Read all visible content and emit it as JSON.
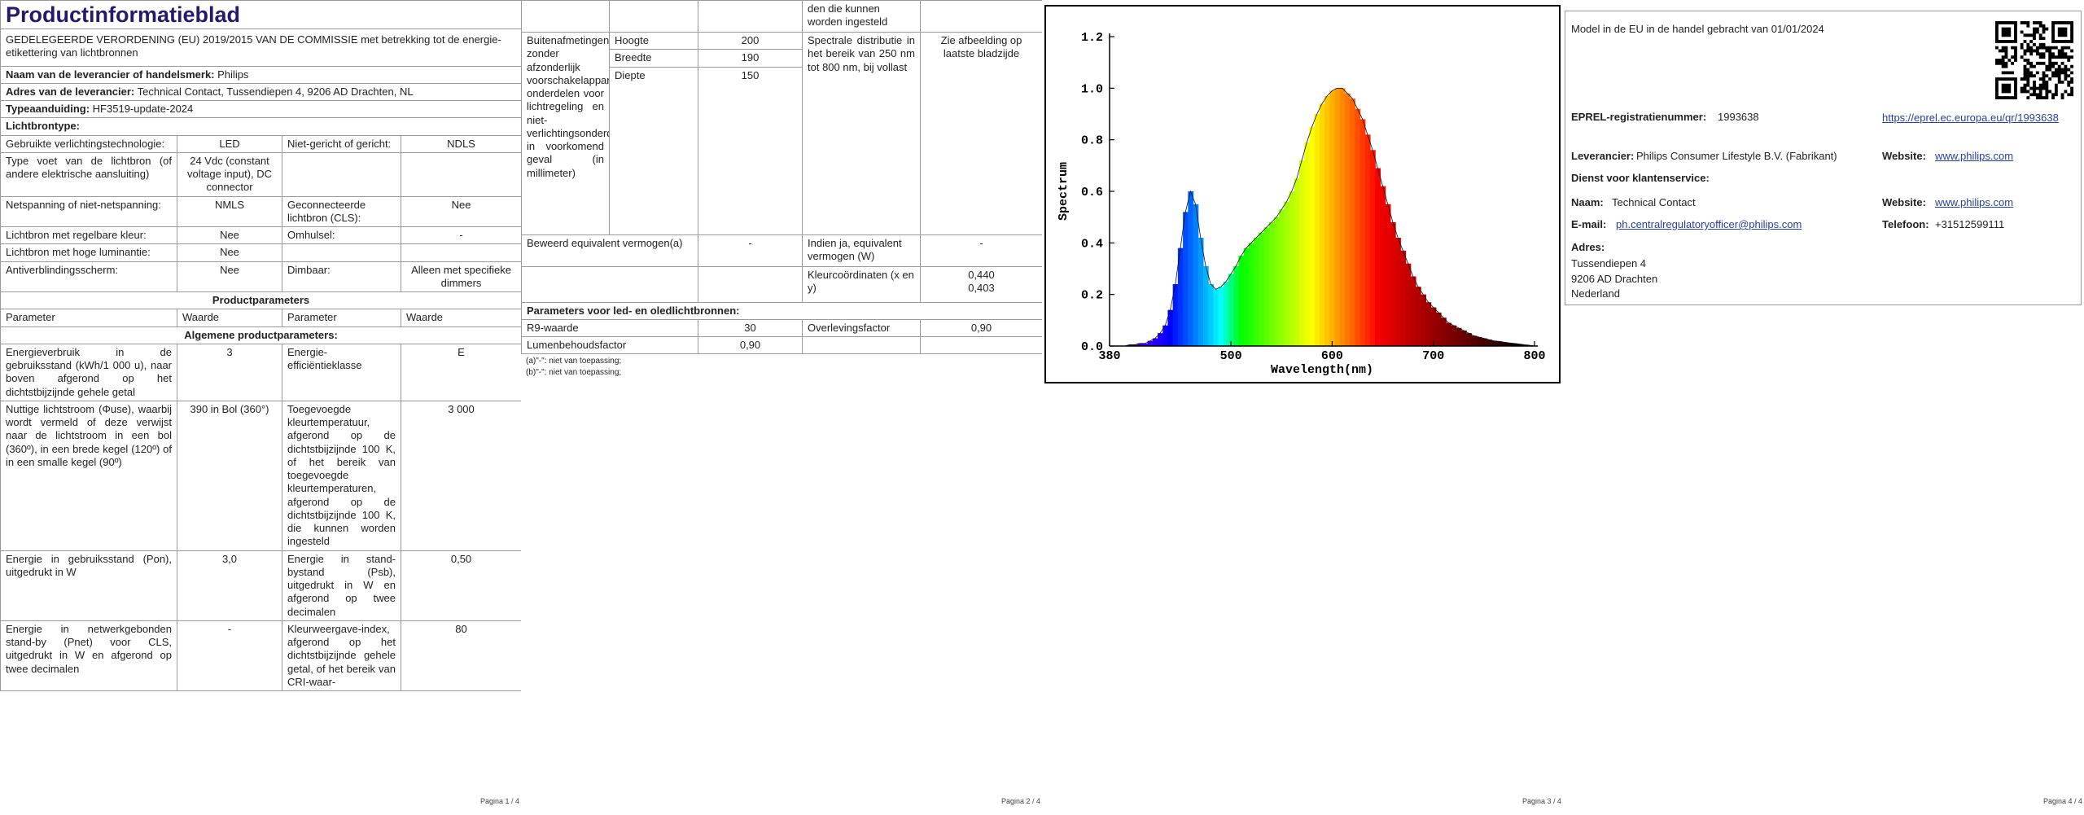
{
  "page1": {
    "title": "Productinformatieblad",
    "subtitle": "GEDELEGEERDE VERORDENING (EU) 2019/2015 VAN DE COMMISSIE met betrekking tot de energie-etikettering van lichtbronnen",
    "supplier": [
      [
        "Naam van de leverancier of handelsmerk:",
        "Philips"
      ],
      [
        "Adres van de leverancier:",
        "Technical Contact, Tussendiepen 4, 9206 AD Drachten, NL"
      ],
      [
        "Typeaanduiding:",
        "HF3519-update-2024"
      ]
    ],
    "lightsource_heading": "Lichtbrontype:",
    "lightsource_rows": [
      [
        "Gebruikte verlichtingstechnologie:",
        "LED",
        "Niet-gericht of gericht:",
        "NDLS"
      ],
      [
        "Type voet van de lichtbron (of andere elektrische aansluiting)",
        "24 Vdc (constant voltage input), DC connector",
        null,
        null
      ],
      [
        "Netspanning of niet-netspanning:",
        "NMLS",
        "Geconnecteerde lichtbron (CLS):",
        "Nee"
      ],
      [
        "Lichtbron met regelbare kleur:",
        "Nee",
        "Omhulsel:",
        "-"
      ],
      [
        "Lichtbron met hoge luminantie:",
        "Nee",
        null,
        null
      ],
      [
        "Antiverblindingsscherm:",
        "Nee",
        "Dimbaar:",
        "Alleen met specifieke dimmers"
      ]
    ],
    "params_heading": "Productparameters",
    "params_columns": [
      "Parameter",
      "Waarde",
      "Parameter",
      "Waarde"
    ],
    "general_heading": "Algemene productparameters:",
    "general_rows": [
      [
        "Energieverbruik in de gebruiksstand (kWh/1 000 u), naar boven afgerond op het dichtstbijzijnde gehele getal",
        "3",
        "Energie-efficiëntieklasse",
        "E"
      ],
      [
        "Nuttige lichtstroom (Φuse), waarbij wordt vermeld of deze verwijst naar de lichtstroom in een bol (360º), in een brede kegel (120º) of in een smalle kegel (90º)",
        "390 in Bol (360°)",
        "Toegevoegde kleurtemperatuur, afgerond op de dichtstbijzijnde 100 K, of het bereik van toegevoegde kleurtemperaturen, afgerond op de dichtstbijzijnde 100 K, die kunnen worden ingesteld",
        "3 000"
      ],
      [
        "Energie in gebruiksstand (Pon), uitgedrukt in W",
        "3,0",
        "Energie in stand-bystand (Psb), uitgedrukt in W en afgerond op twee decimalen",
        "0,50"
      ],
      [
        "Energie in netwerkgebonden stand-by (Pnet) voor CLS, uitgedrukt in W en afgerond op twee decimalen",
        "-",
        "Kleurweergave-index, afgerond op het dichtstbijzijnde gehele getal, of het bereik van CRI-waar-",
        "80"
      ]
    ],
    "footer": "Pagina 1 / 4"
  },
  "page2": {
    "continued": "den die kunnen worden ingesteld",
    "dimensions_label": "Buitenafmetingen zonder afzonderlijk voorschakelapparaat, onderdelen voor lichtregeling en niet-verlichtingsonderdelen, in voorkomend geval (in millimeter)",
    "dimensions": [
      [
        "Hoogte",
        "200"
      ],
      [
        "Breedte",
        "190"
      ],
      [
        "Diepte",
        "150"
      ]
    ],
    "spectral_label": "Spectrale distributie in het bereik van 250 nm tot 800 nm, bij vollast",
    "spectral_value": "Zie afbeelding op laatste bladzijde",
    "equivalent_label": "Beweerd equivalent vermogen(a)",
    "equivalent_value": "-",
    "equivalent_w_label": "Indien ja, equivalent vermogen (W)",
    "equivalent_w_value": "-",
    "chromaticity_label": "Kleurcoördinaten (x en y)",
    "chromaticity_values": [
      "0,440",
      "0,403"
    ],
    "led_heading": "Parameters voor led- en oledlichtbronnen:",
    "r9_label": "R9-waarde",
    "r9_value": "30",
    "survival_label": "Overlevingsfactor",
    "survival_value": "0,90",
    "lumen_label": "Lumenbehoudsfactor",
    "lumen_value": "0,90",
    "footnotes": [
      "(a)\"-\": niet van toepassing;",
      "(b)\"-\": niet van toepassing;"
    ],
    "footer": "Pagina 2 / 4"
  },
  "chart_data": {
    "type": "area",
    "xlabel": "Wavelength(nm)",
    "ylabel": "Spectrum",
    "x": [
      380,
      385,
      390,
      395,
      400,
      405,
      410,
      415,
      420,
      425,
      430,
      435,
      440,
      445,
      450,
      455,
      460,
      465,
      470,
      475,
      480,
      485,
      490,
      495,
      500,
      505,
      510,
      515,
      520,
      525,
      530,
      535,
      540,
      545,
      550,
      555,
      560,
      565,
      570,
      575,
      580,
      585,
      590,
      595,
      600,
      605,
      610,
      615,
      620,
      625,
      630,
      635,
      640,
      645,
      650,
      655,
      660,
      665,
      670,
      675,
      680,
      685,
      690,
      695,
      700,
      705,
      710,
      715,
      720,
      725,
      730,
      735,
      740,
      745,
      750,
      755,
      760,
      765,
      770,
      775,
      780,
      785,
      790,
      795,
      800
    ],
    "values": [
      0,
      0,
      0,
      0,
      0.005,
      0.005,
      0.01,
      0.01,
      0.02,
      0.03,
      0.05,
      0.08,
      0.14,
      0.24,
      0.38,
      0.52,
      0.6,
      0.55,
      0.42,
      0.31,
      0.24,
      0.22,
      0.23,
      0.25,
      0.28,
      0.31,
      0.35,
      0.38,
      0.4,
      0.42,
      0.44,
      0.46,
      0.48,
      0.5,
      0.53,
      0.56,
      0.6,
      0.65,
      0.72,
      0.79,
      0.85,
      0.9,
      0.94,
      0.97,
      0.99,
      1,
      1,
      0.98,
      0.96,
      0.92,
      0.88,
      0.82,
      0.76,
      0.69,
      0.62,
      0.55,
      0.48,
      0.42,
      0.37,
      0.32,
      0.27,
      0.23,
      0.2,
      0.17,
      0.15,
      0.13,
      0.11,
      0.09,
      0.08,
      0.07,
      0.06,
      0.05,
      0.04,
      0.035,
      0.03,
      0.025,
      0.02,
      0.018,
      0.015,
      0.012,
      0.01,
      0.008,
      0.005,
      0.003,
      0
    ],
    "xlim": [
      380,
      800
    ],
    "ylim": [
      0,
      1.2
    ],
    "xticks": [
      380,
      500,
      600,
      700,
      800
    ],
    "yticks": [
      {
        "value": 0,
        "label": "0.0"
      },
      {
        "value": 0.2,
        "label": "0.2"
      },
      {
        "value": 0.4,
        "label": "0.4"
      },
      {
        "value": 0.6,
        "label": "0.6"
      },
      {
        "value": 0.8,
        "label": "0.8"
      },
      {
        "value": 1,
        "label": "1.0"
      },
      {
        "value": 1.2,
        "label": "1.2"
      }
    ]
  },
  "page3": {
    "footer": "Pagina 3 / 4"
  },
  "page4": {
    "placed_on_market": "Model in de EU in de handel gebracht van 01/01/2024",
    "eprel_label": "EPREL-registratienummer:",
    "eprel_value": "1993638",
    "eprel_link": "https://eprel.ec.europa.eu/qr/1993638",
    "supplier_label": "Leverancier:",
    "supplier_value": "Philips Consumer Lifestyle B.V. (Fabrikant)",
    "website_label": "Website:",
    "website_value": "www.philips.com",
    "service_heading": "Dienst voor klantenservice:",
    "name_label": "Naam:",
    "name_value": "Technical Contact",
    "service_website_label": "Website:",
    "service_website_value": "www.philips.com",
    "email_label": "E-mail:",
    "email_value": "ph.centralregulatoryofficer@philips.com",
    "phone_label": "Telefoon:",
    "phone_value": "+31512599111",
    "address_label": "Adres:",
    "address_lines": [
      "Tussendiepen 4",
      "9206 AD Drachten",
      "Nederland"
    ],
    "footer": "Pagina 4 / 4"
  }
}
